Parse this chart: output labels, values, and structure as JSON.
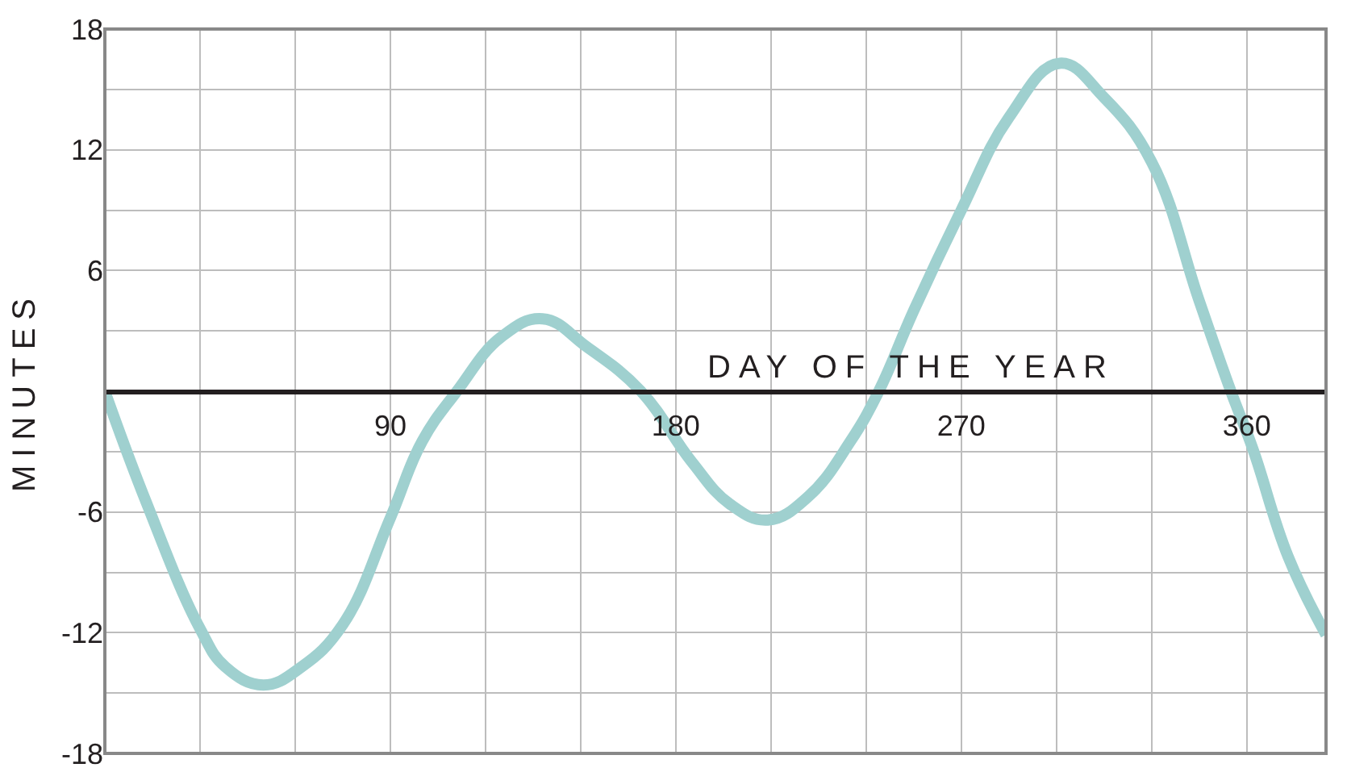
{
  "chart_data": {
    "type": "line",
    "xlabel": "DAY OF THE YEAR",
    "ylabel": "MINUTES",
    "x": [
      0,
      13,
      30,
      38,
      50,
      62,
      75,
      90,
      100,
      111,
      125,
      138,
      152,
      169,
      185,
      197,
      209,
      222,
      235,
      244,
      255,
      270,
      285,
      301,
      315,
      330,
      345,
      355,
      362,
      373,
      385
    ],
    "series": [
      {
        "color": "#9fd0cf",
        "values": [
          0,
          -5.5,
          -11.8,
          -13.7,
          -14.6,
          -13.7,
          -11.6,
          -6.3,
          -2.5,
          0,
          2.7,
          3.6,
          2.2,
          0,
          -3.5,
          -5.6,
          -6.4,
          -5.2,
          -2.5,
          0,
          4,
          9,
          13.6,
          16.3,
          14.6,
          11.4,
          4.5,
          0,
          -2.9,
          -8.2,
          -12.1
        ]
      }
    ],
    "xlim": [
      0,
      385
    ],
    "xticks": [
      {
        "value": 0,
        "label": null
      },
      {
        "value": 30,
        "label": null
      },
      {
        "value": 60,
        "label": null
      },
      90,
      {
        "value": 120,
        "label": null
      },
      {
        "value": 150,
        "label": null
      },
      180,
      {
        "value": 210,
        "label": null
      },
      {
        "value": 240,
        "label": null
      },
      270,
      {
        "value": 300,
        "label": null
      },
      {
        "value": 330,
        "label": null
      },
      360
    ],
    "ylim": [
      -18,
      18
    ],
    "yticks": [
      -18,
      {
        "value": -15,
        "label": null
      },
      -12,
      {
        "value": -9,
        "label": null
      },
      -6,
      {
        "value": -3,
        "label": null
      },
      {
        "value": 0,
        "label": null
      },
      {
        "value": 3,
        "label": null
      },
      6,
      {
        "value": 9,
        "label": null
      },
      12,
      {
        "value": 15,
        "label": null
      },
      18
    ],
    "grid": true,
    "marker": "none",
    "line_style": "solid"
  }
}
